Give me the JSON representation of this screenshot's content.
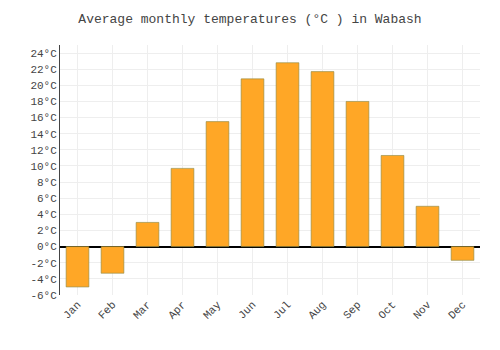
{
  "chart_data": {
    "type": "bar",
    "title": "Average monthly temperatures (°C ) in Wabash",
    "categories": [
      "Jan",
      "Feb",
      "Mar",
      "Apr",
      "May",
      "Jun",
      "Jul",
      "Aug",
      "Sep",
      "Oct",
      "Nov",
      "Dec"
    ],
    "values": [
      -5.0,
      -3.3,
      3.0,
      9.7,
      15.5,
      20.8,
      22.8,
      21.7,
      18.0,
      11.3,
      5.0,
      -1.7
    ],
    "color": "#FFA726",
    "ylim": [
      -6,
      25
    ],
    "yticks": [
      {
        "value": -6,
        "label": "-6°C"
      },
      {
        "value": -4,
        "label": "-4°C"
      },
      {
        "value": -2,
        "label": "-2°C"
      },
      {
        "value": 0,
        "label": "0°C"
      },
      {
        "value": 2,
        "label": "2°C"
      },
      {
        "value": 4,
        "label": "4°C"
      },
      {
        "value": 6,
        "label": "6°C"
      },
      {
        "value": 8,
        "label": "8°C"
      },
      {
        "value": 10,
        "label": "10°C"
      },
      {
        "value": 12,
        "label": "12°C"
      },
      {
        "value": 14,
        "label": "14°C"
      },
      {
        "value": 16,
        "label": "16°C"
      },
      {
        "value": 18,
        "label": "18°C"
      },
      {
        "value": 20,
        "label": "20°C"
      },
      {
        "value": 22,
        "label": "22°C"
      },
      {
        "value": 24,
        "label": "24°C"
      }
    ],
    "grid": true
  }
}
